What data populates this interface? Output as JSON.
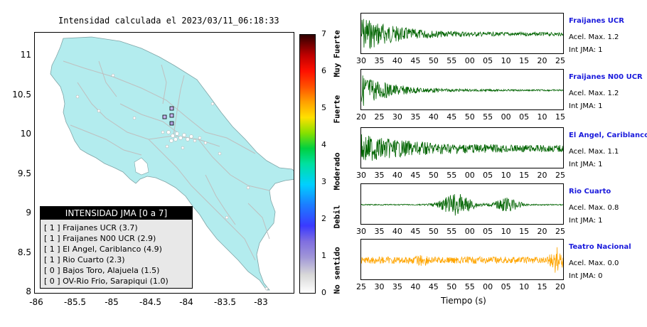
{
  "map": {
    "title": "Intensidad calculada el 2023/03/11_06:18:33",
    "y_ticks": [
      "11",
      "10.5",
      "10",
      "9.5",
      "9",
      "8.5",
      "8"
    ],
    "x_ticks": [
      "-86",
      "-85.5",
      "-85",
      "-84.5",
      "-84",
      "-83.5",
      "-83"
    ],
    "land_color": "#b3ecee",
    "sea_color": "#ffffff"
  },
  "legend": {
    "title": "INTENSIDAD JMA [0 a 7]",
    "items": [
      "[ 1 ]  Fraijanes UCR (3.7)",
      "[ 1 ]  Fraijanes N00 UCR (2.9)",
      "[ 1 ]  El Angel, Cariblanco (4.9)",
      "[ 1 ]  Rio Cuarto (2.3)",
      "[ 0 ]  Bajos Toro, Alajuela (1.5)",
      "[ 0 ]  OV-Rio Frio, Sarapiqui (1.0)"
    ]
  },
  "colorbar": {
    "ticks": [
      "7",
      "6",
      "5",
      "4",
      "3",
      "2",
      "1",
      "0"
    ],
    "words": [
      "Muy Fuerte",
      "Fuerte",
      "Moderado",
      "Debil",
      "No sentido"
    ]
  },
  "waveforms": [
    {
      "name": "Fraijanes UCR",
      "acel": "Acel. Max. 1.2",
      "int": "Int JMA: 1",
      "color": "#006400",
      "ticks": [
        "30",
        "35",
        "40",
        "45",
        "50",
        "55",
        "00",
        "05",
        "10",
        "15",
        "20",
        "25"
      ]
    },
    {
      "name": "Fraijanes N00 UCR",
      "acel": "Acel. Max. 1.2",
      "int": "Int JMA: 1",
      "color": "#006400",
      "ticks": [
        "20",
        "25",
        "30",
        "35",
        "40",
        "45",
        "50",
        "55",
        "00",
        "05",
        "10",
        "15"
      ]
    },
    {
      "name": "El Angel, Cariblanco",
      "acel": "Acel. Max. 1.1",
      "int": "Int JMA: 1",
      "color": "#006400",
      "ticks": [
        "30",
        "35",
        "40",
        "45",
        "50",
        "55",
        "00",
        "05",
        "10",
        "15",
        "20",
        "25"
      ]
    },
    {
      "name": "Rio Cuarto",
      "acel": "Acel. Max. 0.8",
      "int": "Int JMA: 1",
      "color": "#006400",
      "ticks": [
        "30",
        "35",
        "40",
        "45",
        "50",
        "55",
        "00",
        "05",
        "10",
        "15",
        "20",
        "25"
      ]
    },
    {
      "name": "Teatro Nacional",
      "acel": "Acel. Max. 0.0",
      "int": "Int JMA: 0",
      "color": "#ffa500",
      "ticks": [
        "25",
        "30",
        "35",
        "40",
        "45",
        "50",
        "55",
        "00",
        "05",
        "10",
        "15",
        "20"
      ]
    }
  ],
  "wave_xlabel": "Tiempo (s)"
}
